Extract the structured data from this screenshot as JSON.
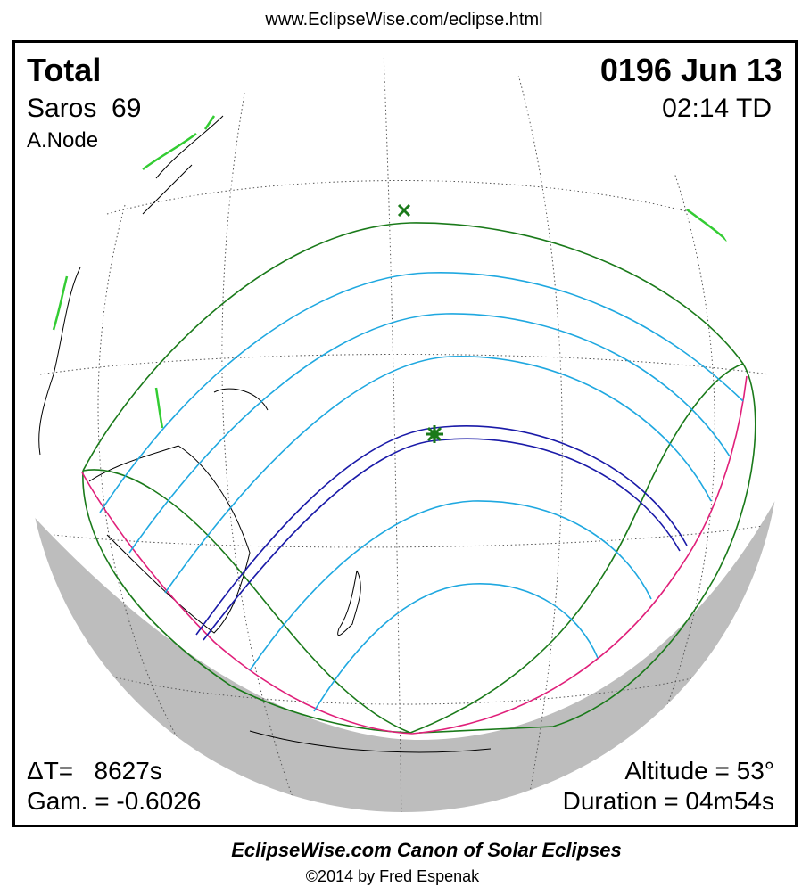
{
  "header": {
    "url": "www.EclipseWise.com/eclipse.html"
  },
  "map": {
    "eclipse_type": "Total",
    "date": "0196 Jun 13",
    "saros": "Saros  69",
    "time": "02:14 TD",
    "node": "A.Node",
    "delta_t": "ΔT=   8627s",
    "gamma": "Gam. = -0.6026",
    "altitude": "Altitude = 53°",
    "duration": "Duration = 04m54s"
  },
  "footer": {
    "title": "EclipseWise.com Canon of Solar Eclipses",
    "copyright": "©2014 by Fred Espenak"
  }
}
